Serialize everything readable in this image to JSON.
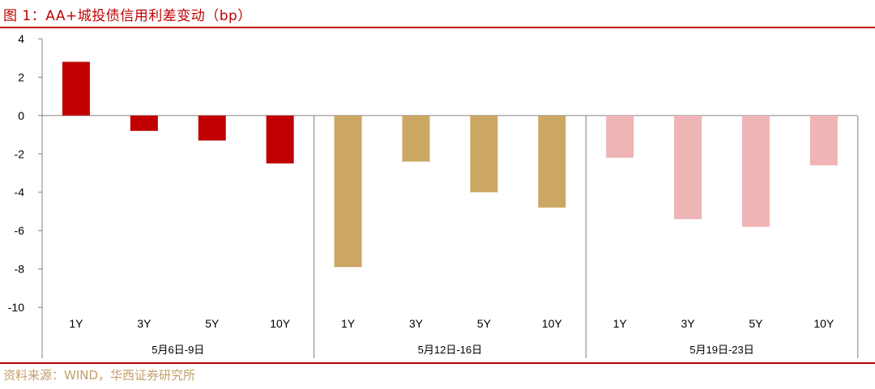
{
  "title": "图 1：AA+城投债信用利差变动（bp）",
  "source": "资料来源：WIND，华西证券研究所",
  "colors": {
    "accent": "#c00000",
    "source_text": "#c3a06a",
    "group_colors": [
      "#c00000",
      "#cca663",
      "#efb4b5"
    ]
  },
  "chart_data": {
    "type": "bar",
    "ylim": [
      -10,
      4
    ],
    "yticks": [
      4,
      2,
      0,
      -2,
      -4,
      -6,
      -8,
      -10
    ],
    "groups": [
      {
        "label": "5月6日-9日",
        "categories": [
          "1Y",
          "3Y",
          "5Y",
          "10Y"
        ],
        "values": [
          2.8,
          -0.8,
          -1.3,
          -2.5
        ]
      },
      {
        "label": "5月12日-16日",
        "categories": [
          "1Y",
          "3Y",
          "5Y",
          "10Y"
        ],
        "values": [
          -7.9,
          -2.4,
          -4.0,
          -4.8
        ]
      },
      {
        "label": "5月19日-23日",
        "categories": [
          "1Y",
          "3Y",
          "5Y",
          "10Y"
        ],
        "values": [
          -2.2,
          -5.4,
          -5.8,
          -2.6
        ]
      }
    ],
    "grid": false,
    "legend": "none"
  }
}
